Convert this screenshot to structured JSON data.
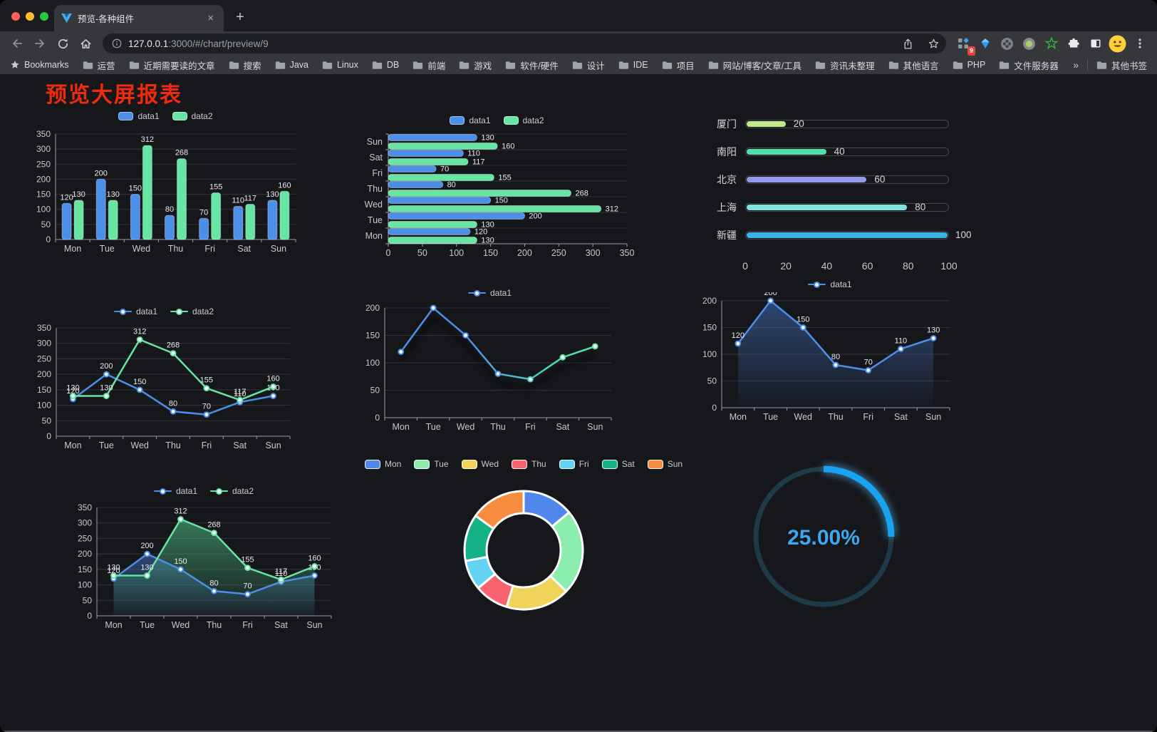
{
  "browser": {
    "tab_title": "预览-各种组件",
    "url_host": "127.0.0.1",
    "url_rest": ":3000/#/chart/preview/9",
    "new_tab_label": "+",
    "tab_close_label": "×",
    "extensions_badge": "9",
    "bookmarks_label": "Bookmarks",
    "bookmarks": [
      "运营",
      "近期需要读的文章",
      "搜索",
      "Java",
      "Linux",
      "DB",
      "前端",
      "游戏",
      "软件/硬件",
      "设计",
      "IDE",
      "项目",
      "网站/博客/文章/工具",
      "资讯未整理",
      "其他语言",
      "PHP",
      "文件服务器"
    ],
    "bookmarks_overflow": "»",
    "other_bookmarks": "其他书签",
    "icons": {
      "traffic": [
        "close",
        "minimize",
        "zoom"
      ],
      "nav": [
        "back-arrow",
        "forward-arrow",
        "reload",
        "home"
      ],
      "address": [
        "site-info",
        "share",
        "bookmark-star"
      ],
      "extensions": [
        "grid-badge",
        "devtools-gem",
        "flower-circle",
        "recorder-circle",
        "star-outline",
        "puzzle",
        "side-panel"
      ],
      "profile": "avatar-emoji",
      "menu": "kebab-menu"
    }
  },
  "page": {
    "title": "预览大屏报表",
    "title_color": "#EE2B0E",
    "background": "#16171B"
  },
  "chart_data": [
    {
      "id": "c1",
      "type": "bar",
      "title": "",
      "categories": [
        "Mon",
        "Tue",
        "Wed",
        "Thu",
        "Fri",
        "Sat",
        "Sun"
      ],
      "series": [
        {
          "name": "data1",
          "color": "#4C8FE8",
          "values": [
            120,
            200,
            150,
            80,
            70,
            110,
            130
          ]
        },
        {
          "name": "data2",
          "color": "#67E5A3",
          "values": [
            130,
            130,
            312,
            268,
            155,
            117,
            160
          ]
        }
      ],
      "ylim": [
        0,
        350
      ],
      "ytick_step": 50,
      "grid": true,
      "legend_position": "top",
      "value_labels": true
    },
    {
      "id": "c2",
      "type": "bar",
      "orientation": "horizontal",
      "categories": [
        "Mon",
        "Tue",
        "Wed",
        "Thu",
        "Fri",
        "Sat",
        "Sun"
      ],
      "series": [
        {
          "name": "data1",
          "color": "#4C8FE8",
          "values": [
            120,
            200,
            150,
            80,
            70,
            110,
            130
          ]
        },
        {
          "name": "data2",
          "color": "#67E5A3",
          "values": [
            130,
            130,
            312,
            268,
            155,
            117,
            160
          ]
        }
      ],
      "xlim": [
        0,
        350
      ],
      "xtick_step": 50,
      "grid": true,
      "legend_position": "top",
      "value_labels": true
    },
    {
      "id": "c3",
      "type": "bar",
      "subtype": "progress-list",
      "categories": [
        "厦门",
        "南阳",
        "北京",
        "上海",
        "新疆"
      ],
      "values": [
        20,
        40,
        60,
        80,
        100
      ],
      "colors": [
        "#C3E88D",
        "#52E0AC",
        "#9299E8",
        "#7FE3E0",
        "#3DB2E5"
      ],
      "xlim": [
        0,
        100
      ],
      "xticks": [
        0,
        20,
        40,
        60,
        80,
        100
      ],
      "value_labels": true
    },
    {
      "id": "c4",
      "type": "line",
      "categories": [
        "Mon",
        "Tue",
        "Wed",
        "Thu",
        "Fri",
        "Sat",
        "Sun"
      ],
      "series": [
        {
          "name": "data1",
          "color": "#4C8FE8",
          "values": [
            120,
            200,
            150,
            80,
            70,
            110,
            130
          ]
        },
        {
          "name": "data2",
          "color": "#67E5A3",
          "values": [
            130,
            130,
            312,
            268,
            155,
            117,
            160
          ]
        }
      ],
      "ylim": [
        0,
        350
      ],
      "ytick_step": 50,
      "grid": true,
      "legend_position": "top",
      "value_labels": true
    },
    {
      "id": "c5",
      "type": "line",
      "categories": [
        "Mon",
        "Tue",
        "Wed",
        "Thu",
        "Fri",
        "Sat",
        "Sun"
      ],
      "series": [
        {
          "name": "data1",
          "color": "#4C8FE8",
          "gradient": [
            "#4C8FE8",
            "#4C8FE8",
            "#49C9C2",
            "#5CE6A1"
          ],
          "values": [
            120,
            200,
            150,
            80,
            70,
            110,
            130
          ]
        }
      ],
      "ylim": [
        0,
        200
      ],
      "ytick_step": 50,
      "grid": true,
      "legend_position": "top",
      "value_labels": false,
      "shadow": true
    },
    {
      "id": "c6",
      "type": "area",
      "categories": [
        "Mon",
        "Tue",
        "Wed",
        "Thu",
        "Fri",
        "Sat",
        "Sun"
      ],
      "series": [
        {
          "name": "data1",
          "color": "#4C8FE8",
          "area_from": "rgba(68,120,200,0.50)",
          "area_to": "rgba(68,120,200,0.03)",
          "values": [
            120,
            200,
            150,
            80,
            70,
            110,
            130
          ]
        }
      ],
      "ylim": [
        0,
        200
      ],
      "ytick_step": 50,
      "grid": true,
      "legend_position": "top",
      "value_labels": true
    },
    {
      "id": "c7",
      "type": "area",
      "categories": [
        "Mon",
        "Tue",
        "Wed",
        "Thu",
        "Fri",
        "Sat",
        "Sun"
      ],
      "series": [
        {
          "name": "data1",
          "color": "#4C8FE8",
          "area_from": "rgba(68,120,200,0.50)",
          "area_to": "rgba(68,120,200,0.03)",
          "values": [
            120,
            200,
            150,
            80,
            70,
            110,
            130
          ]
        },
        {
          "name": "data2",
          "color": "#67E5A3",
          "area_from": "rgba(80,200,140,0.55)",
          "area_to": "rgba(80,200,140,0.03)",
          "values": [
            130,
            130,
            312,
            268,
            155,
            117,
            160
          ]
        }
      ],
      "ylim": [
        0,
        350
      ],
      "ytick_step": 50,
      "grid": true,
      "legend_position": "top",
      "value_labels": true
    },
    {
      "id": "c8",
      "type": "pie",
      "subtype": "donut",
      "categories": [
        "Mon",
        "Tue",
        "Wed",
        "Thu",
        "Fri",
        "Sat",
        "Sun"
      ],
      "values": [
        120,
        200,
        150,
        80,
        70,
        110,
        130
      ],
      "colors": [
        "#5087EC",
        "#8BEEAF",
        "#F0D45A",
        "#F8636F",
        "#64D2F2",
        "#14B284",
        "#F78C3E"
      ],
      "legend_position": "top",
      "border_color": "#FFFFFF"
    },
    {
      "id": "c9",
      "type": "gauge",
      "percent": 25,
      "value_label": "25.00%",
      "color": "#18A2F2",
      "track_color": "#1E3A46",
      "text_color": "#3FA6F0"
    }
  ]
}
